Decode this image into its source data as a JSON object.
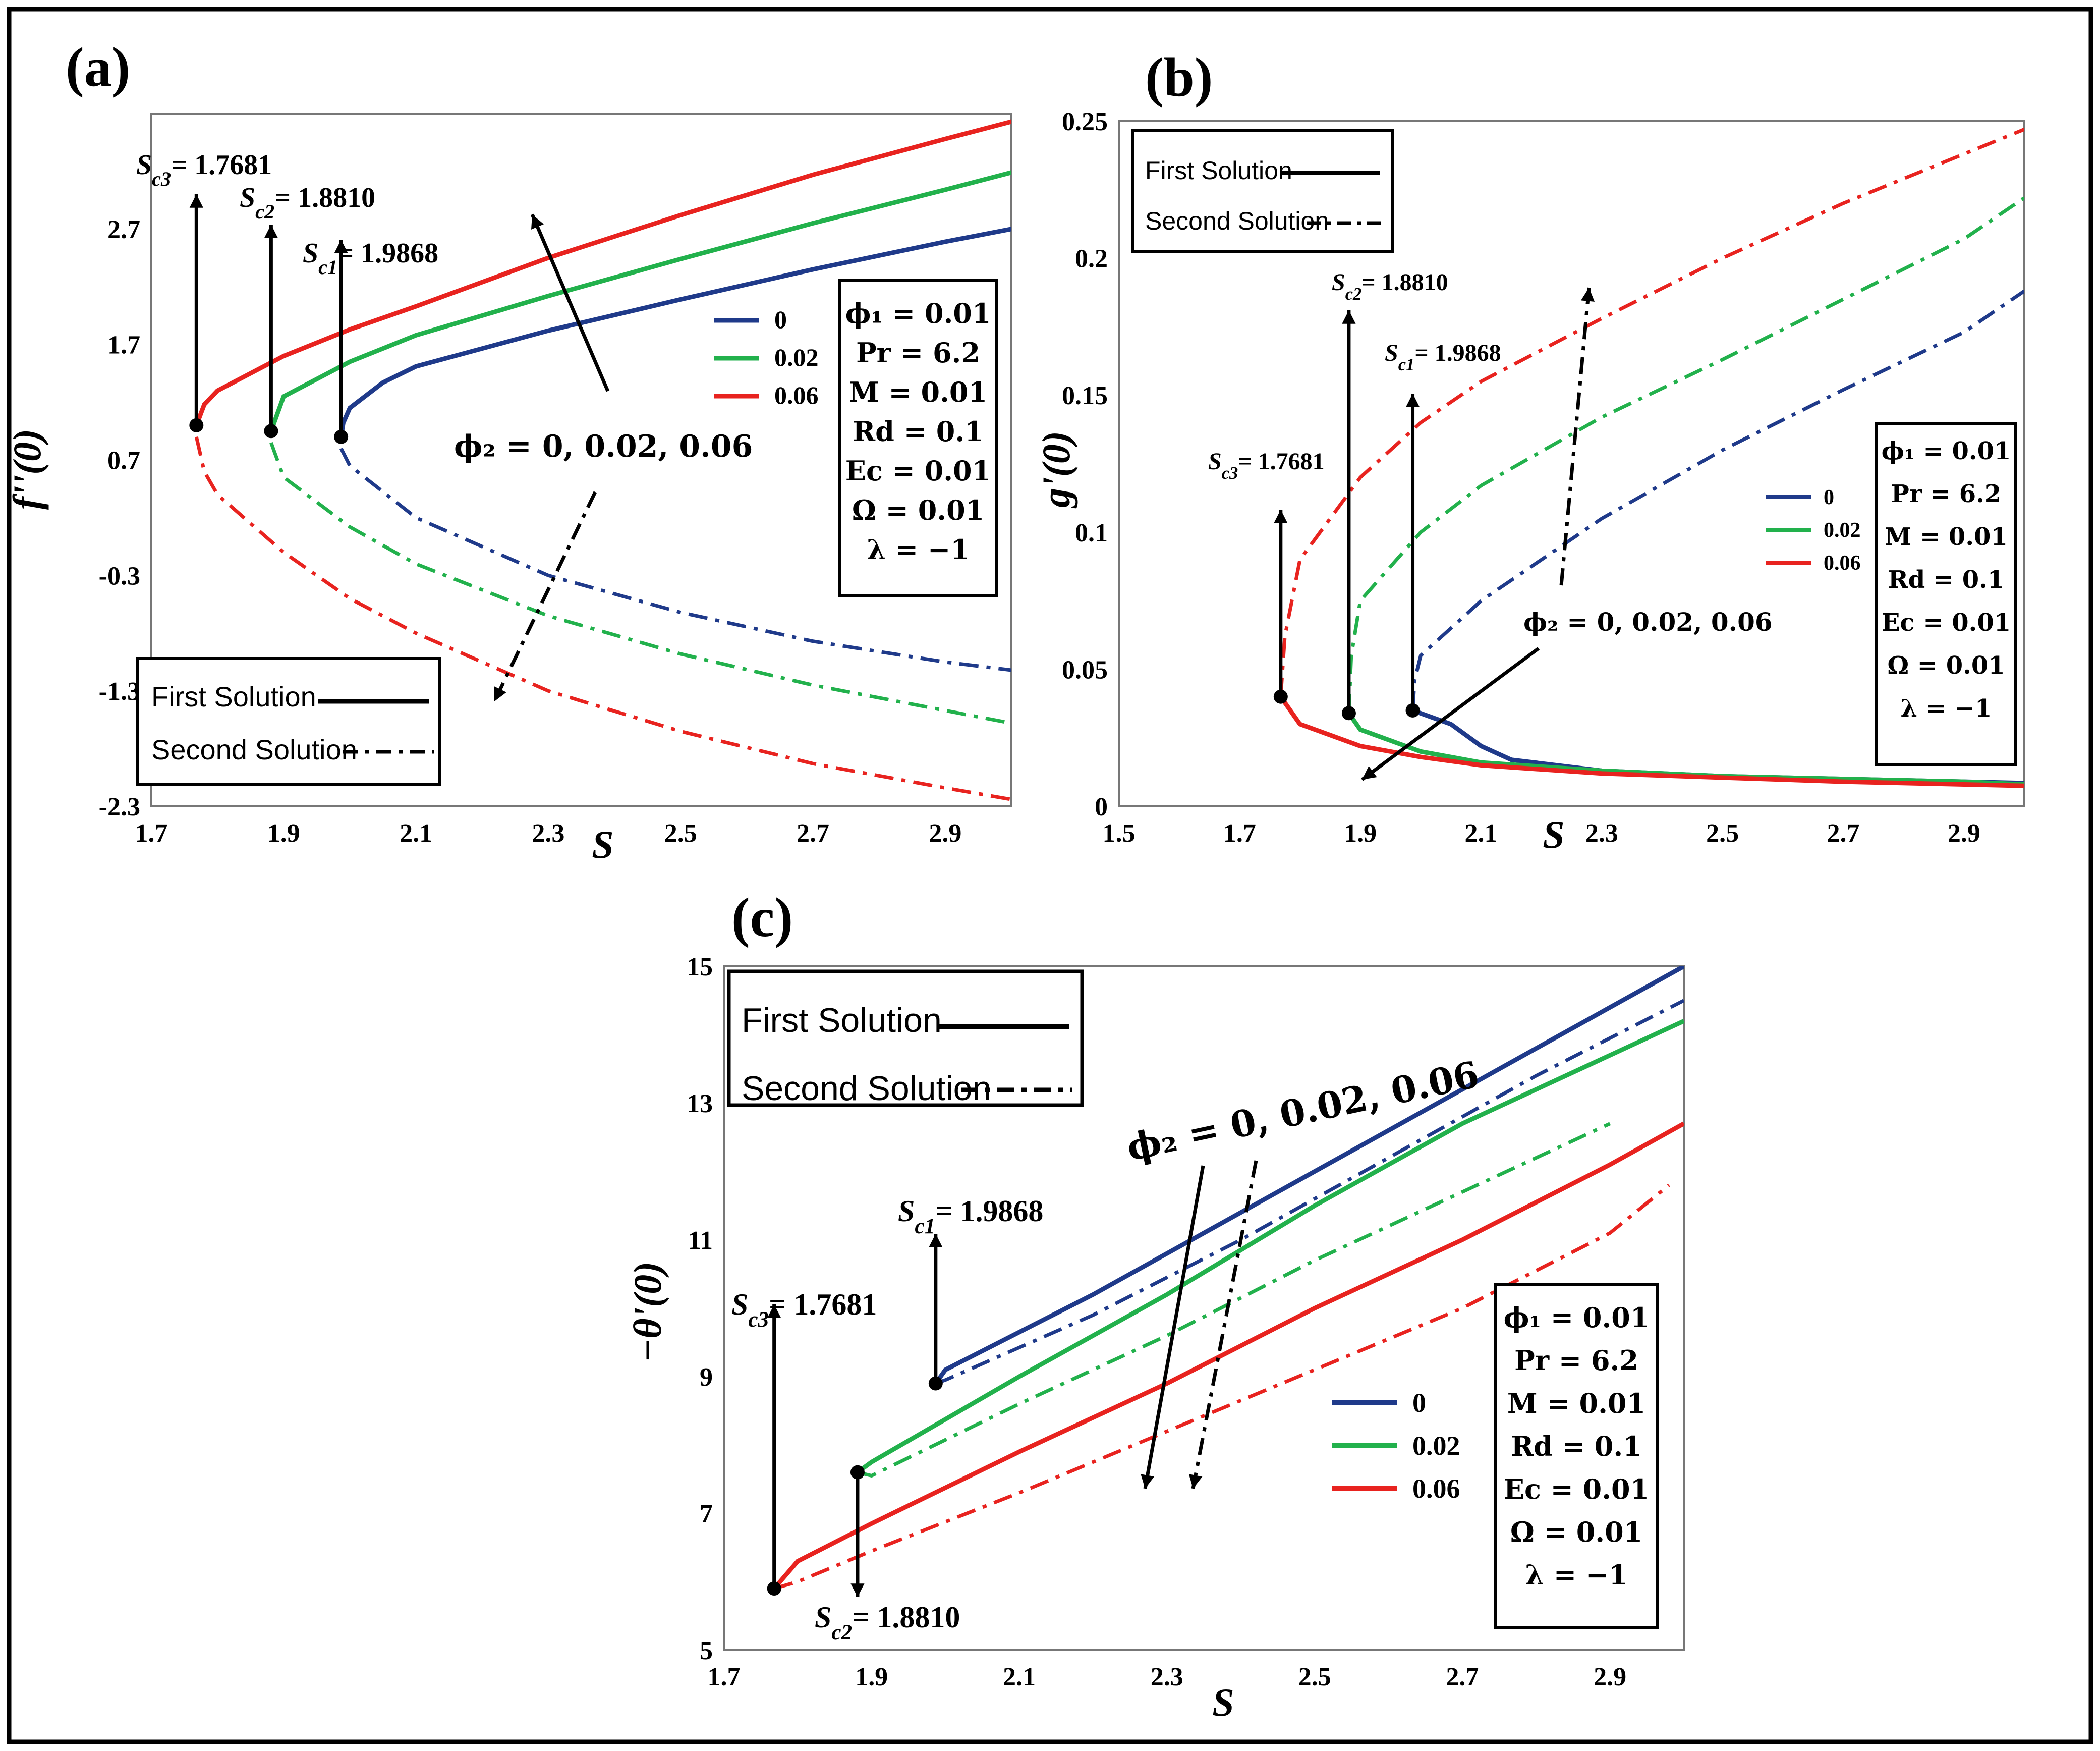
{
  "chart_data": [
    {
      "id": "a",
      "type": "line",
      "panel_label": "(a)",
      "xlabel": "S",
      "ylabel": "f''(0)",
      "xlim": [
        1.7,
        3.0
      ],
      "ylim": [
        -2.3,
        3.7
      ],
      "x_ticks": [
        "1.7",
        "1.9",
        "2.1",
        "2.3",
        "2.5",
        "2.7",
        "2.9"
      ],
      "y_ticks": [
        "2.7",
        "1.7",
        "0.7",
        "-0.3",
        "-1.3",
        "-2.3"
      ],
      "series": [
        {
          "name": "0",
          "color": "#1f3a8a",
          "critical": 1.9868,
          "fc": 0.9,
          "first": {
            "x": [
              1.9868,
              1.99,
              2.0,
              2.05,
              2.1,
              2.3,
              2.5,
              2.7,
              2.9,
              3.0
            ],
            "y": [
              0.9,
              1.02,
              1.15,
              1.37,
              1.51,
              1.82,
              2.09,
              2.35,
              2.59,
              2.7
            ]
          },
          "second": {
            "x": [
              1.9868,
              2.0,
              2.1,
              2.3,
              2.5,
              2.7,
              2.9,
              3.0
            ],
            "y": [
              0.8,
              0.65,
              0.2,
              -0.3,
              -0.62,
              -0.87,
              -1.05,
              -1.12
            ]
          }
        },
        {
          "name": "0.02",
          "color": "#22b14c",
          "critical": 1.881,
          "fc": 0.95,
          "first": {
            "x": [
              1.881,
              1.9,
              2.0,
              2.1,
              2.3,
              2.5,
              2.7,
              2.9,
              3.0
            ],
            "y": [
              0.95,
              1.25,
              1.55,
              1.78,
              2.12,
              2.44,
              2.75,
              3.04,
              3.19
            ]
          },
          "second": {
            "x": [
              1.881,
              1.9,
              2.0,
              2.1,
              2.3,
              2.5,
              2.7,
              2.9,
              3.0
            ],
            "y": [
              0.85,
              0.55,
              0.12,
              -0.2,
              -0.65,
              -0.98,
              -1.25,
              -1.47,
              -1.58
            ]
          }
        },
        {
          "name": "0.06",
          "color": "#e8231f",
          "critical": 1.7681,
          "fc": 1.0,
          "first": {
            "x": [
              1.7681,
              1.78,
              1.8,
              1.9,
              2.0,
              2.1,
              2.3,
              2.5,
              2.7,
              2.9,
              3.0
            ],
            "y": [
              1.0,
              1.18,
              1.3,
              1.6,
              1.83,
              2.03,
              2.45,
              2.82,
              3.17,
              3.48,
              3.63
            ]
          },
          "second": {
            "x": [
              1.7681,
              1.78,
              1.8,
              1.9,
              2.0,
              2.1,
              2.3,
              2.5,
              2.7,
              2.9,
              3.0
            ],
            "y": [
              0.9,
              0.6,
              0.4,
              -0.1,
              -0.5,
              -0.8,
              -1.3,
              -1.65,
              -1.93,
              -2.14,
              -2.24
            ]
          }
        }
      ],
      "critical_labels": [
        "S_c3= 1.7681",
        "S_c2= 1.8810",
        "S_c1= 1.9868"
      ],
      "phi2_label": "ϕ₂ = 0, 0.02, 0.06",
      "params": [
        "ϕ₁  =  0.01",
        "Pr  =  6.2",
        "M = 0.01",
        "Rd  = 0.1",
        "Ec  = 0.01",
        "Ω  = 0.01",
        "λ  = −1"
      ],
      "legend": [
        "First Solution",
        "Second Solution"
      ]
    },
    {
      "id": "b",
      "type": "line",
      "panel_label": "(b)",
      "xlabel": "S",
      "ylabel": "g'(0)",
      "xlim": [
        1.5,
        3.0
      ],
      "ylim": [
        0,
        0.25
      ],
      "x_ticks": [
        "1.5",
        "1.7",
        "1.9",
        "2.1",
        "2.3",
        "2.5",
        "2.7",
        "2.9"
      ],
      "y_ticks": [
        "0.25",
        "0.2",
        "0.15",
        "0.1",
        "0.05",
        "0"
      ],
      "series": [
        {
          "name": "0",
          "color": "#1f3a8a",
          "critical": 1.9868,
          "fc": 0.035,
          "first": {
            "x": [
              1.9868,
              2.05,
              2.1,
              2.15,
              2.3,
              2.5,
              2.7,
              2.9,
              3.0
            ],
            "y": [
              0.035,
              0.03,
              0.022,
              0.017,
              0.013,
              0.011,
              0.01,
              0.009,
              0.0085
            ]
          },
          "second": {
            "x": [
              1.9868,
              1.99,
              2.0,
              2.1,
              2.3,
              2.5,
              2.7,
              2.9,
              3.0
            ],
            "y": [
              0.035,
              0.046,
              0.055,
              0.075,
              0.105,
              0.13,
              0.152,
              0.173,
              0.188
            ]
          }
        },
        {
          "name": "0.02",
          "color": "#22b14c",
          "critical": 1.881,
          "fc": 0.034,
          "first": {
            "x": [
              1.881,
              1.9,
              2.0,
              2.1,
              2.3,
              2.5,
              2.7,
              2.9,
              3.0
            ],
            "y": [
              0.034,
              0.028,
              0.02,
              0.016,
              0.013,
              0.011,
              0.01,
              0.009,
              0.008
            ]
          },
          "second": {
            "x": [
              1.881,
              1.885,
              1.9,
              2.0,
              2.1,
              2.3,
              2.5,
              2.7,
              2.9,
              3.0
            ],
            "y": [
              0.034,
              0.055,
              0.075,
              0.1,
              0.117,
              0.142,
              0.163,
              0.185,
              0.207,
              0.222
            ]
          }
        },
        {
          "name": "0.06",
          "color": "#e8231f",
          "critical": 1.7681,
          "fc": 0.04,
          "first": {
            "x": [
              1.7681,
              1.8,
              1.9,
              2.0,
              2.1,
              2.3,
              2.5,
              2.7,
              2.9,
              3.0
            ],
            "y": [
              0.04,
              0.03,
              0.022,
              0.018,
              0.015,
              0.012,
              0.0105,
              0.009,
              0.008,
              0.0075
            ]
          },
          "second": {
            "x": [
              1.7681,
              1.775,
              1.8,
              1.9,
              2.0,
              2.1,
              2.3,
              2.5,
              2.7,
              2.9,
              3.0
            ],
            "y": [
              0.04,
              0.062,
              0.09,
              0.12,
              0.14,
              0.155,
              0.178,
              0.2,
              0.22,
              0.238,
              0.247
            ]
          }
        }
      ],
      "critical_labels": [
        "S_c3= 1.7681",
        "S_c2= 1.8810",
        "S_c1= 1.9868"
      ],
      "phi2_label": "ϕ₂ = 0, 0.02, 0.06",
      "params": [
        "ϕ₁  = 0.01",
        "Pr  =  6.2",
        "M = 0.01",
        "Rd  = 0.1",
        "Ec  = 0.01",
        "Ω  = 0.01",
        "λ  = −1"
      ],
      "legend": [
        "First Solution",
        "Second Solution"
      ]
    },
    {
      "id": "c",
      "type": "line",
      "panel_label": "(c)",
      "xlabel": "S",
      "ylabel": "−θ'(0)",
      "xlim": [
        1.7,
        3.0
      ],
      "ylim": [
        5,
        15
      ],
      "x_ticks": [
        "1.7",
        "1.9",
        "2.1",
        "2.3",
        "2.5",
        "2.7",
        "2.9"
      ],
      "y_ticks": [
        "15",
        "13",
        "11",
        "9",
        "7",
        "5"
      ],
      "series": [
        {
          "name": "0",
          "color": "#1f3a8a",
          "critical": 1.9868,
          "fc": 8.9,
          "first": {
            "x": [
              1.9868,
              2.0,
              2.2,
              2.4,
              2.6,
              2.8,
              3.0
            ],
            "y": [
              8.9,
              9.1,
              10.2,
              11.4,
              12.6,
              13.8,
              15.0
            ]
          },
          "second": {
            "x": [
              1.9868,
              2.0,
              2.2,
              2.4,
              2.6,
              2.8,
              3.0
            ],
            "y": [
              8.9,
              8.95,
              9.9,
              11.0,
              12.2,
              13.4,
              14.5
            ]
          }
        },
        {
          "name": "0.02",
          "color": "#22b14c",
          "critical": 1.881,
          "fc": 7.6,
          "first": {
            "x": [
              1.881,
              1.9,
              2.1,
              2.3,
              2.5,
              2.7,
              2.9,
              3.0
            ],
            "y": [
              7.6,
              7.75,
              9.0,
              10.2,
              11.5,
              12.7,
              13.7,
              14.2
            ]
          },
          "second": {
            "x": [
              1.881,
              1.9,
              2.1,
              2.3,
              2.5,
              2.7,
              2.9
            ],
            "y": [
              7.6,
              7.55,
              8.6,
              9.6,
              10.7,
              11.7,
              12.7
            ]
          }
        },
        {
          "name": "0.06",
          "color": "#e8231f",
          "critical": 1.7681,
          "fc": 5.9,
          "first": {
            "x": [
              1.7681,
              1.8,
              1.9,
              2.1,
              2.3,
              2.5,
              2.7,
              2.9,
              3.0
            ],
            "y": [
              5.9,
              6.3,
              6.85,
              7.9,
              8.9,
              10.0,
              11.0,
              12.1,
              12.7
            ]
          },
          "second": {
            "x": [
              1.7681,
              1.8,
              1.9,
              2.1,
              2.3,
              2.5,
              2.7,
              2.9,
              2.98
            ],
            "y": [
              5.9,
              6.0,
              6.45,
              7.3,
              8.2,
              9.1,
              10.0,
              11.1,
              11.8
            ]
          }
        }
      ],
      "critical_labels": [
        "S_c3= 1.7681",
        "S_c2= 1.8810",
        "S_c1= 1.9868"
      ],
      "phi2_label": "ϕ₂ = 0, 0.02, 0.06",
      "params": [
        "ϕ₁  =  0.01",
        "Pr  =  6.2",
        "M = 0.01",
        "Rd  = 0.1",
        "Ec  = 0.01",
        "Ω  = 0.01",
        "λ  = −1"
      ],
      "legend": [
        "First Solution",
        "Second Solution"
      ]
    }
  ]
}
